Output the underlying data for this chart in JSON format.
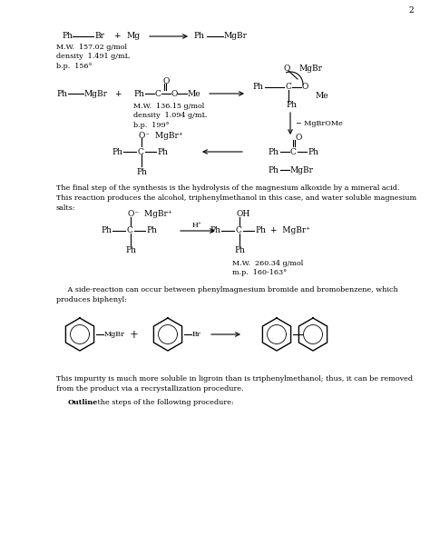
{
  "page_number": "2",
  "background_color": "#ffffff",
  "text_color": "#000000",
  "fs": 6.5,
  "fs_small": 5.8,
  "reaction1_mw": "M.W.  157.02 g/mol\ndensity  1.491 g/mL\nb.p.  156°",
  "reaction2_mw": "M.W.  136.15 g/mol\ndensity  1.094 g/mL\nb.p.  199°",
  "mw_triphenyl": "M.W.  260.34 g/mol\nm.p.  160-163°",
  "paragraph1": "The final step of the synthesis is the hydrolysis of the magnesium alkoxide by a mineral acid.\nThis reaction produces the alcohol, triphenylmethanol in this case, and water soluble magnesium\nsalts:",
  "paragraph2": "     A side-reaction can occur between phenylmagnesium bromide and bromobenzene, which\nproduces biphenyl:",
  "paragraph3": "This impurity is much more soluble in ligroin than is triphenylmethanol; thus, it can be removed\nfrom the product via a recrystallization procedure.",
  "paragraph4_bold": "Outline",
  "paragraph4_rest": " the steps of the following procedure:"
}
